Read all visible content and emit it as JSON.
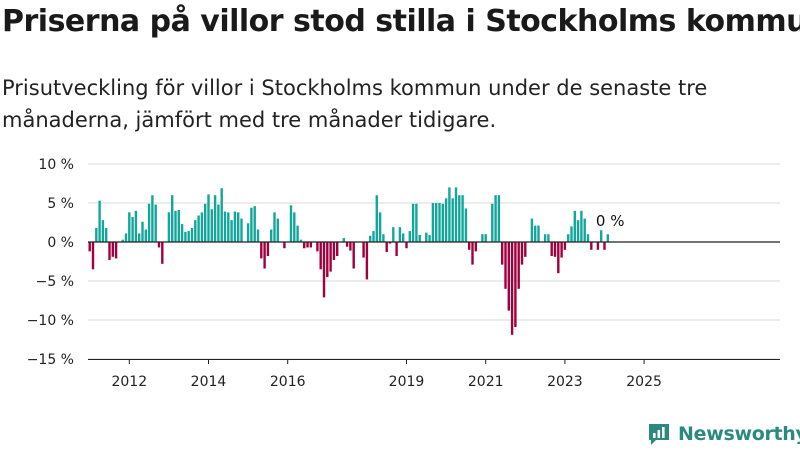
{
  "header": {
    "title": "Priserna på villor stod stilla i Stockholms kommun",
    "subtitle": "Prisutveckling för villor i Stockholms kommun under de senaste tre månaderna, jämfört med tre månader tidigare."
  },
  "brand": {
    "name": "Newsworthy",
    "icon": "newsworthy-logo-icon"
  },
  "colors": {
    "positive": "#13a69b",
    "negative": "#a1003f",
    "grid": "#d9d9d9",
    "axis": "#222222"
  },
  "chart_data": {
    "type": "bar",
    "x_start": "2011-01",
    "x_step": "month",
    "x_tick_labels": [
      "2012",
      "2014",
      "2016",
      "2019",
      "2021",
      "2023",
      "2025"
    ],
    "x_tick_values": [
      "2012-01",
      "2014-01",
      "2016-01",
      "2019-01",
      "2021-01",
      "2023-01",
      "2025-01"
    ],
    "ylim": [
      -15,
      10
    ],
    "y_ticks": [
      10,
      5,
      0,
      -5,
      -10,
      -15
    ],
    "y_tick_labels": [
      "10 %",
      "5 %",
      "0 %",
      "−5 %",
      "−10 %",
      "−15 %"
    ],
    "y_unit": "%",
    "grid": true,
    "annotation": {
      "text": "0 %"
    },
    "values": [
      -1.2,
      -3.5,
      1.8,
      5.3,
      2.8,
      1.8,
      -2.3,
      -1.9,
      -2.1,
      0,
      0.3,
      1.1,
      3.8,
      3.2,
      4,
      1.1,
      2.6,
      1.6,
      4.9,
      6,
      4.8,
      -0.7,
      -2.8,
      0,
      3.8,
      6,
      4,
      4.1,
      2.3,
      1.3,
      1.4,
      1.8,
      2.8,
      3.4,
      3.8,
      4.9,
      6.1,
      4.2,
      6,
      4.8,
      6.9,
      3.9,
      3.8,
      2.8,
      3.9,
      3.8,
      3,
      0,
      2.4,
      4.4,
      4.6,
      1.6,
      -2.1,
      -3.4,
      -1.8,
      1.6,
      3.8,
      3,
      0,
      -0.8,
      0,
      4.7,
      3.8,
      2.1,
      0.3,
      -0.8,
      -0.7,
      -0.7,
      0,
      -1.2,
      -3.5,
      -7.1,
      -4.5,
      -3.8,
      -2.3,
      -1.8,
      0,
      0.5,
      -0.6,
      -1.1,
      -3.4,
      0,
      0,
      -2,
      -4.8,
      0.8,
      1.4,
      6,
      3.8,
      1,
      -1.3,
      -0.2,
      1.9,
      -1.8,
      1.9,
      1.1,
      -0.8,
      1.4,
      4.9,
      4.9,
      0.9,
      0,
      1.2,
      0.9,
      5,
      5,
      5,
      4.9,
      5.6,
      7,
      5.6,
      7,
      6,
      6,
      4.3,
      -1,
      -2.9,
      -1.2,
      0,
      1,
      1,
      0,
      4.9,
      6,
      6,
      -2.9,
      -6,
      -8.8,
      -11.9,
      -10.9,
      -6,
      -2.9,
      -1.9,
      0,
      3,
      2.1,
      2.1,
      0,
      1,
      1,
      -1.8,
      -1.9,
      -4,
      -2,
      -1,
      1,
      2,
      4,
      2.8,
      4,
      3,
      1,
      -1,
      0,
      -1,
      1.5,
      -1,
      1,
      0
    ]
  }
}
